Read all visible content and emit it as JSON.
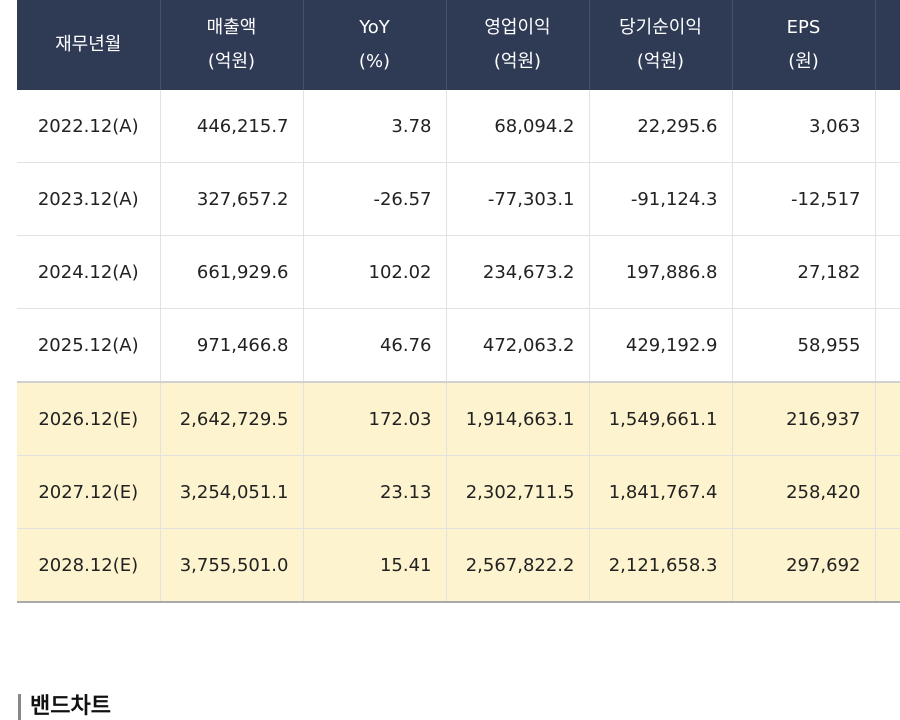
{
  "table": {
    "headers": [
      {
        "label": "재무년월"
      },
      {
        "label": "매출액",
        "unit": "(억원)"
      },
      {
        "label": "YoY",
        "unit": "(%)"
      },
      {
        "label": "영업이익",
        "unit": "(억원)"
      },
      {
        "label": "당기순이익",
        "unit": "(억원)"
      },
      {
        "label": "EPS",
        "unit": "(원)"
      }
    ],
    "rows": [
      [
        "2022.12(A)",
        "446,215.7",
        "3.78",
        "68,094.2",
        "22,295.6",
        "3,063"
      ],
      [
        "2023.12(A)",
        "327,657.2",
        "-26.57",
        "-77,303.1",
        "-91,124.3",
        "-12,517"
      ],
      [
        "2024.12(A)",
        "661,929.6",
        "102.02",
        "234,673.2",
        "197,886.8",
        "27,182"
      ],
      [
        "2025.12(A)",
        "971,466.8",
        "46.76",
        "472,063.2",
        "429,192.9",
        "58,955"
      ],
      [
        "2026.12(E)",
        "2,642,729.5",
        "172.03",
        "1,914,663.1",
        "1,549,661.1",
        "216,937"
      ],
      [
        "2027.12(E)",
        "3,254,051.1",
        "23.13",
        "2,302,711.5",
        "1,841,767.4",
        "258,420"
      ],
      [
        "2028.12(E)",
        "3,755,501.0",
        "15.41",
        "2,567,822.2",
        "2,121,658.3",
        "297,692"
      ]
    ]
  },
  "section": {
    "title": "밴드차트"
  }
}
